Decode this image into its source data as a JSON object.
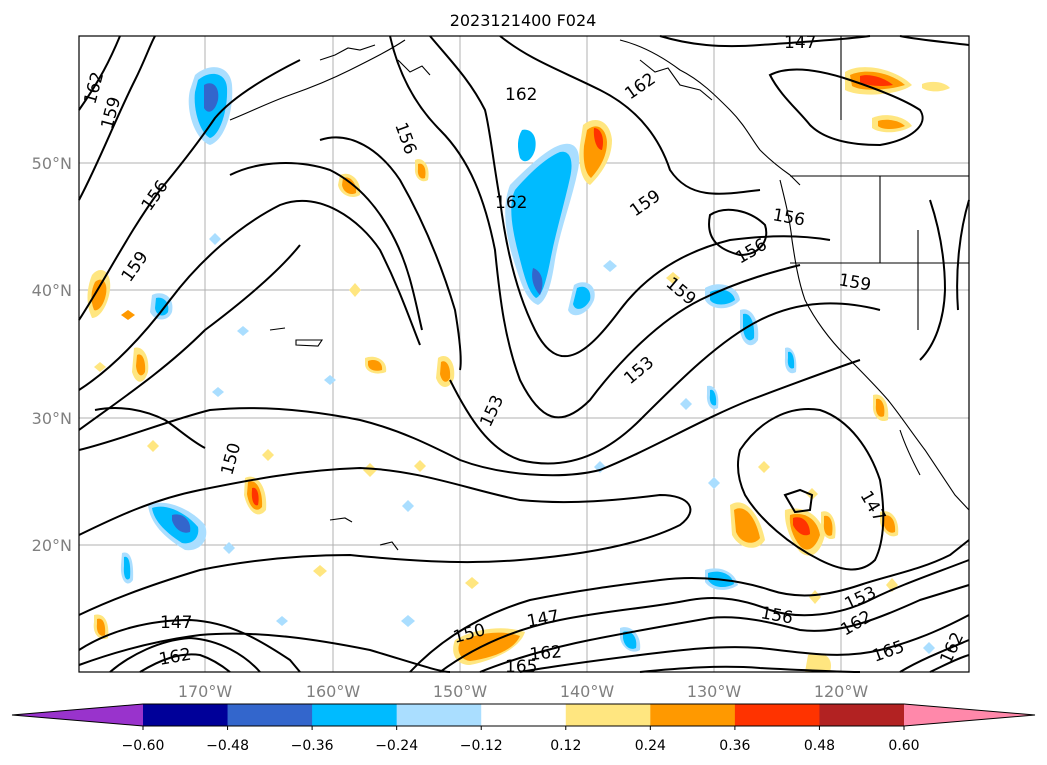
{
  "title": "2023121400 F024",
  "lat_labels": [
    "50°N",
    "40°N",
    "30°N",
    "20°N"
  ],
  "lon_labels": [
    "170°W",
    "160°W",
    "150°W",
    "140°W",
    "130°W",
    "120°W"
  ],
  "colorbar": {
    "ticks": [
      "−0.60",
      "−0.48",
      "−0.36",
      "−0.24",
      "−0.12",
      "0.12",
      "0.24",
      "0.36",
      "0.48",
      "0.60"
    ],
    "colors": [
      "#9933cc",
      "#000099",
      "#3366cc",
      "#00bbff",
      "#aadeff",
      "#ffffff",
      "#ffe680",
      "#ff9900",
      "#ff3300",
      "#b22222",
      "#ff88aa"
    ],
    "extend": "both"
  },
  "contour_labels": [
    "162",
    "159",
    "156",
    "159",
    "153",
    "150",
    "147",
    "162",
    "156",
    "159",
    "162",
    "162",
    "159",
    "156",
    "156",
    "153",
    "147",
    "150",
    "147",
    "162",
    "165",
    "156",
    "153",
    "147",
    "162",
    "165",
    "162",
    "159",
    "162"
  ],
  "icons": {
    "map": "map-icon"
  }
}
